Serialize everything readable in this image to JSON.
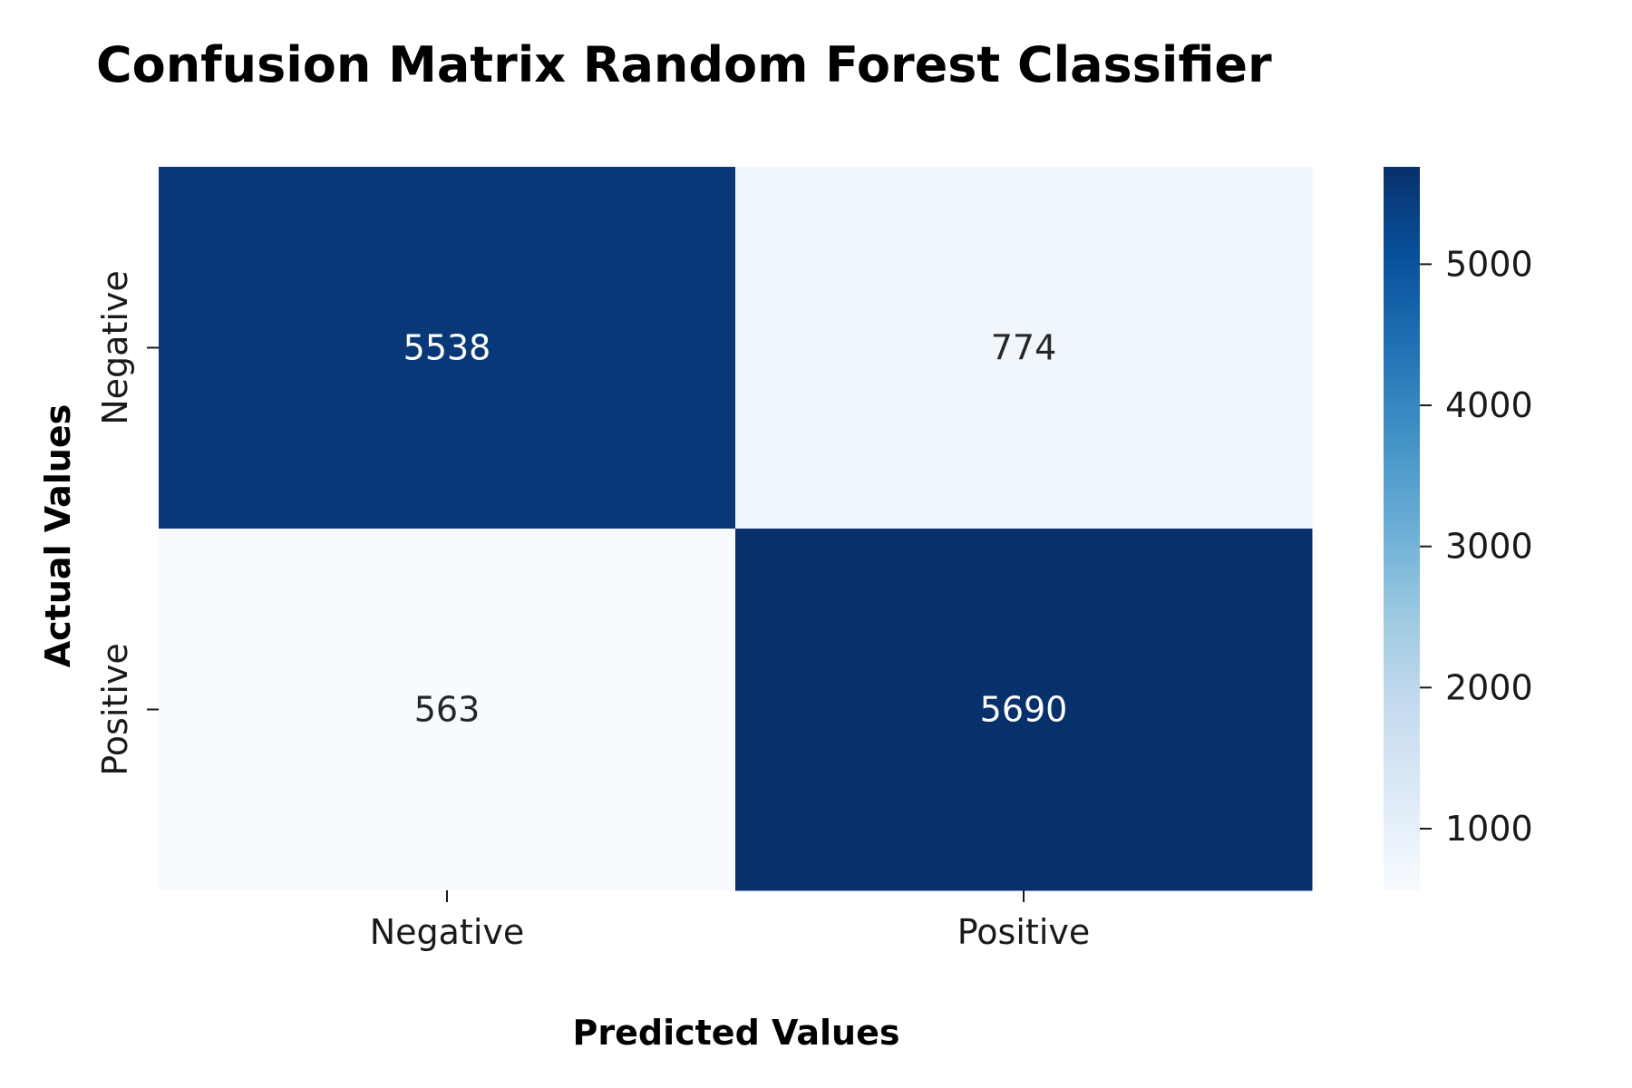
{
  "chart_data": {
    "type": "heatmap",
    "title": "Confusion Matrix Random Forest Classifier",
    "xlabel": "Predicted Values",
    "ylabel": "Actual Values",
    "x_categories": [
      "Negative",
      "Positive"
    ],
    "y_categories": [
      "Negative",
      "Positive"
    ],
    "values": [
      [
        5538,
        774
      ],
      [
        563,
        5690
      ]
    ],
    "colormap": "Blues",
    "colorbar": {
      "range": [
        563,
        5690
      ],
      "ticks": [
        1000,
        2000,
        3000,
        4000,
        5000
      ]
    },
    "colors": {
      "low": "#f7fbff",
      "high": "#08306b",
      "text_dark": "#262626",
      "text_light": "#ffffff"
    }
  }
}
